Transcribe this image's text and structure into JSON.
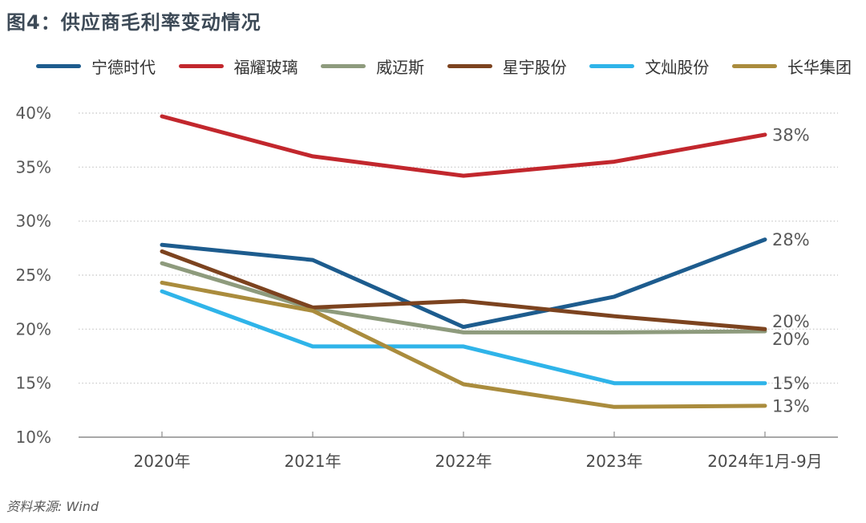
{
  "title": "图4：供应商毛利率变动情况",
  "source": "资料来源: Wind",
  "colors": {
    "title_text": "#3D4A57",
    "axis_text": "#595959",
    "x_axis_text": "#4a4a4a",
    "legend_text": "#333333",
    "gridline": "#C4C4C4",
    "baseline": "#8C8C8C"
  },
  "chart_data": {
    "type": "line",
    "title": "供应商毛利率变动情况",
    "categories": [
      "2020年",
      "2021年",
      "2022年",
      "2023年",
      "2024年1月-9月"
    ],
    "y_axis": {
      "ticks": [
        "40%",
        "35%",
        "30%",
        "25%",
        "20%",
        "15%",
        "10%"
      ],
      "min": 10,
      "max": 40,
      "step": 5,
      "unit": "%"
    },
    "grid": "horizontal-dotted",
    "legend_position": "top",
    "series": [
      {
        "name": "宁德时代",
        "color": "#1D5C8E",
        "values": [
          27.8,
          26.4,
          20.2,
          23.0,
          28.3
        ],
        "end_label": "28%"
      },
      {
        "name": "福耀玻璃",
        "color": "#C2272D",
        "values": [
          39.7,
          36.0,
          34.2,
          35.5,
          38.0
        ],
        "end_label": "38%"
      },
      {
        "name": "威迈斯",
        "color": "#8E9B7D",
        "values": [
          26.1,
          21.9,
          19.7,
          19.7,
          19.8
        ],
        "end_label": "20%"
      },
      {
        "name": "星宇股份",
        "color": "#7C431F",
        "values": [
          27.2,
          22.0,
          22.6,
          21.2,
          20.0
        ],
        "end_label": "20%"
      },
      {
        "name": "文灿股份",
        "color": "#2FB4E9",
        "values": [
          23.5,
          18.4,
          18.4,
          15.0,
          15.0
        ],
        "end_label": "15%"
      },
      {
        "name": "长华集团",
        "color": "#AA8C3D",
        "values": [
          24.3,
          21.7,
          14.9,
          12.8,
          12.9
        ],
        "end_label": "13%"
      }
    ]
  }
}
